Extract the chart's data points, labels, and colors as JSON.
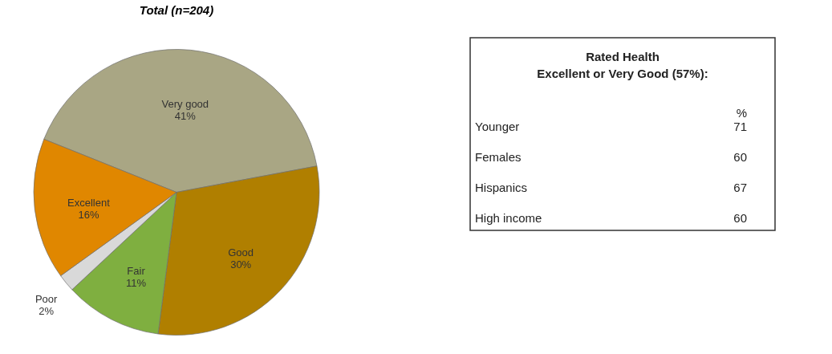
{
  "chart_data": [
    {
      "type": "pie",
      "title": "Total (n=204)",
      "categories": [
        "Very good",
        "Good",
        "Fair",
        "Poor",
        "Excellent"
      ],
      "values": [
        41,
        30,
        11,
        2,
        16
      ],
      "value_labels": [
        "41%",
        "30%",
        "11%",
        "2%",
        "16%"
      ],
      "colors": [
        "#a9a684",
        "#b07f00",
        "#7faf40",
        "#d9d9d9",
        "#e08700"
      ]
    },
    {
      "type": "other",
      "title": "Rated Health\nExcellent or Very Good (57%):",
      "annotations": [
        "%"
      ],
      "categories": [
        "Younger",
        "Females",
        "Hispanics",
        "High income"
      ],
      "values": [
        71,
        60,
        67,
        60
      ],
      "data_labels": true
    }
  ]
}
